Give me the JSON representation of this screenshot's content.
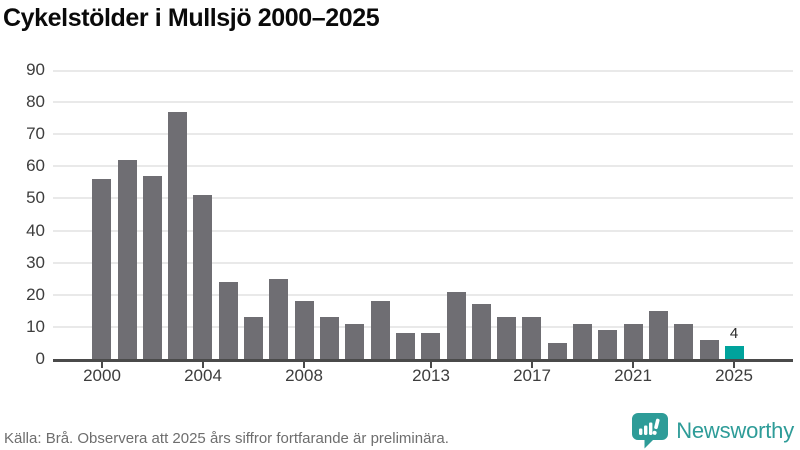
{
  "title": "Cykelstölder i Mullsjö 2000–2025",
  "chart_data": {
    "type": "bar",
    "title": "Cykelstölder i Mullsjö 2000–2025",
    "categories": [
      2000,
      2001,
      2002,
      2003,
      2004,
      2005,
      2006,
      2007,
      2008,
      2009,
      2010,
      2011,
      2012,
      2013,
      2014,
      2015,
      2016,
      2017,
      2018,
      2019,
      2020,
      2021,
      2022,
      2023,
      2024,
      2025
    ],
    "values": [
      56,
      62,
      57,
      77,
      51,
      24,
      13,
      25,
      18,
      13,
      11,
      18,
      8,
      8,
      21,
      17,
      13,
      13,
      5,
      11,
      9,
      11,
      15,
      11,
      6,
      4
    ],
    "xlabel": "",
    "ylabel": "",
    "ylim": [
      0,
      90
    ],
    "ytick_step": 10,
    "ytick_labels": [
      "0",
      "10",
      "20",
      "30",
      "40",
      "50",
      "60",
      "70",
      "80",
      "90"
    ],
    "xtick_years": [
      2000,
      2004,
      2008,
      2013,
      2017,
      2021,
      2025
    ],
    "grid": true,
    "legend_position": "none",
    "bar_color": "#6f6e73",
    "highlight": {
      "index": 25,
      "year": 2025,
      "color": "#00a39c",
      "label": "4"
    }
  },
  "footer": {
    "source_text": "Källa: Brå. Observera att 2025 års siffror fortfarande är preliminära.",
    "brand": "Newsworthy"
  },
  "colors": {
    "background": "#ffffff",
    "bar": "#6f6e73",
    "highlight": "#00a39c",
    "gridline": "#e9e9e9",
    "axis": "#4a4a4a",
    "tick_label": "#3d3d3d",
    "title": "#0a0a0a",
    "source": "#6e6e6e",
    "brand_teal": "#2e9c98"
  }
}
